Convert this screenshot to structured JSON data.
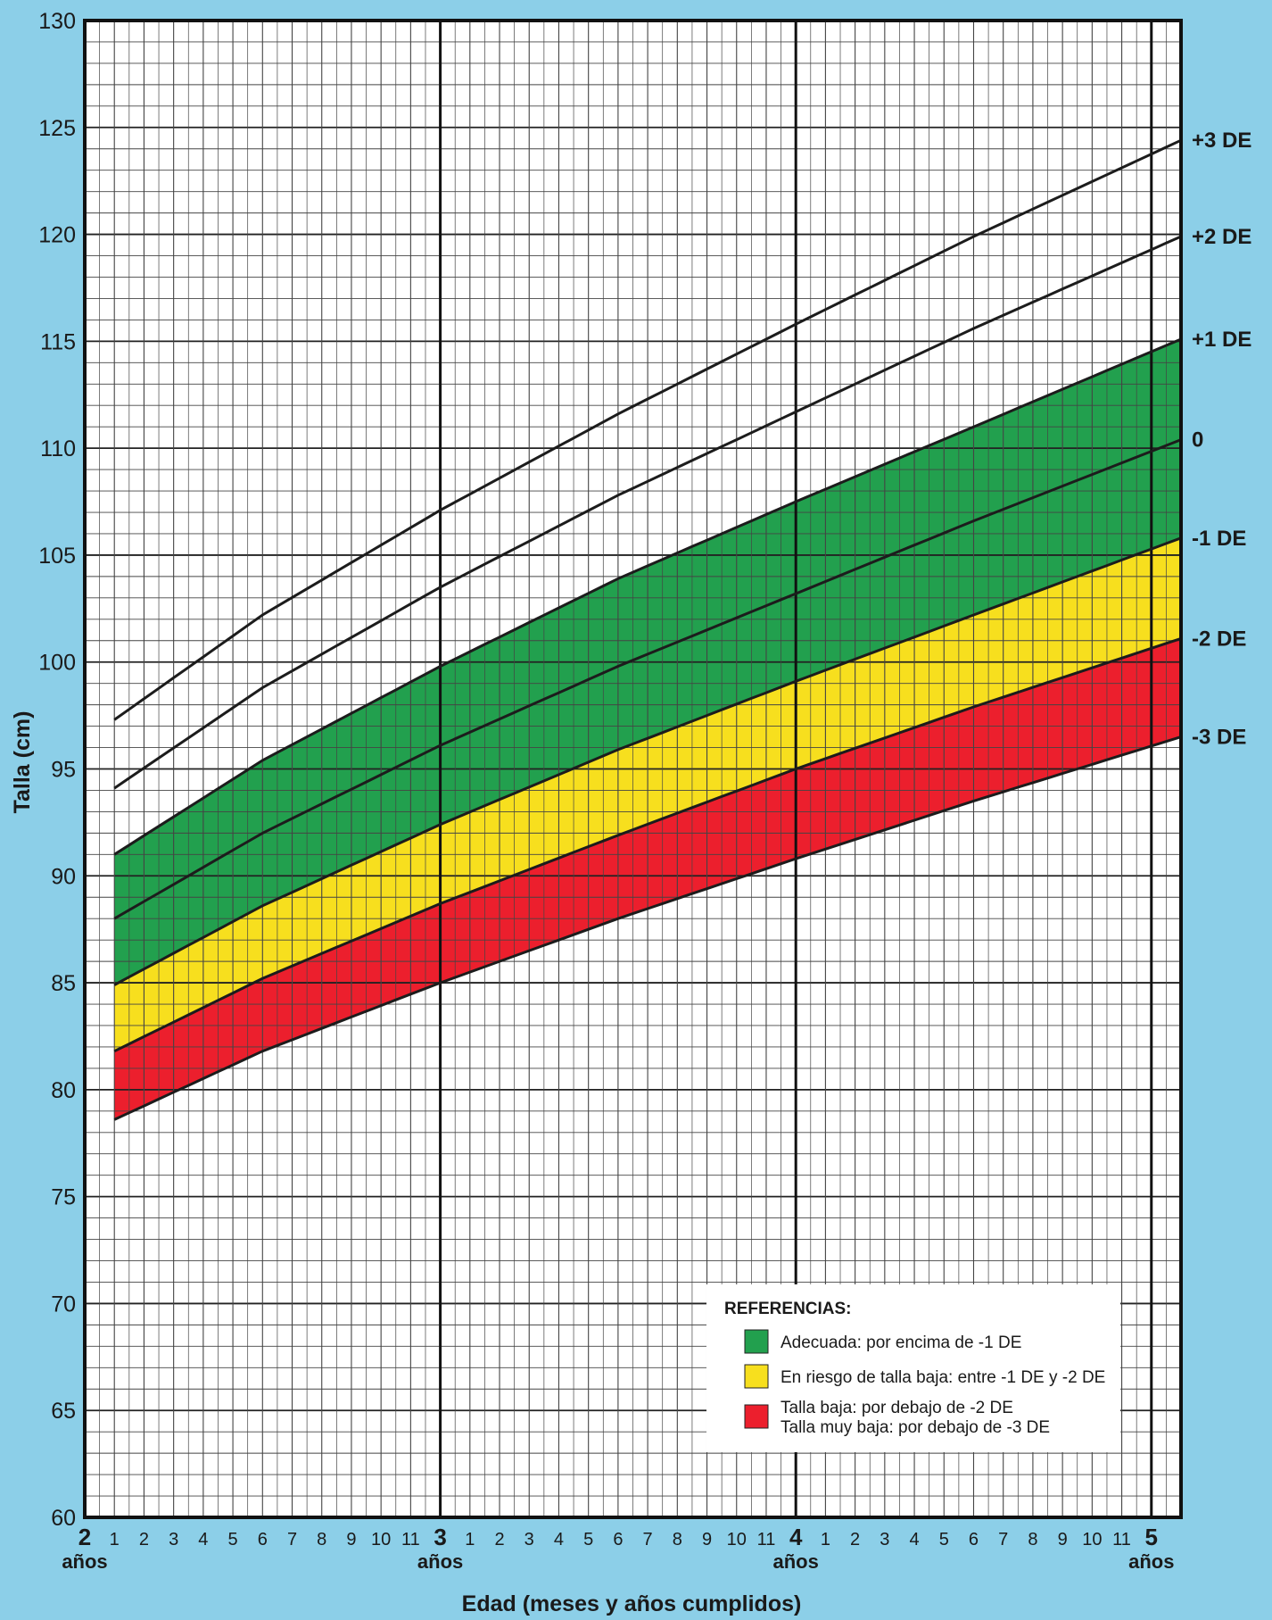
{
  "chart_data": {
    "type": "line",
    "xlabel": "Edad (meses y años cumplidos)",
    "ylabel": "Talla (cm)",
    "xlim": [
      24,
      61
    ],
    "ylim": [
      60,
      130
    ],
    "y_ticks": [
      60,
      65,
      70,
      75,
      80,
      85,
      90,
      95,
      100,
      105,
      110,
      115,
      120,
      125,
      130
    ],
    "x_tick_labels": [
      {
        "x": 24,
        "label": "2",
        "sub": "años",
        "major": true
      },
      {
        "x": 25,
        "label": "1"
      },
      {
        "x": 26,
        "label": "2"
      },
      {
        "x": 27,
        "label": "3"
      },
      {
        "x": 28,
        "label": "4"
      },
      {
        "x": 29,
        "label": "5"
      },
      {
        "x": 30,
        "label": "6"
      },
      {
        "x": 31,
        "label": "7"
      },
      {
        "x": 32,
        "label": "8"
      },
      {
        "x": 33,
        "label": "9"
      },
      {
        "x": 34,
        "label": "10"
      },
      {
        "x": 35,
        "label": "11"
      },
      {
        "x": 36,
        "label": "3",
        "sub": "años",
        "major": true
      },
      {
        "x": 37,
        "label": "1"
      },
      {
        "x": 38,
        "label": "2"
      },
      {
        "x": 39,
        "label": "3"
      },
      {
        "x": 40,
        "label": "4"
      },
      {
        "x": 41,
        "label": "5"
      },
      {
        "x": 42,
        "label": "6"
      },
      {
        "x": 43,
        "label": "7"
      },
      {
        "x": 44,
        "label": "8"
      },
      {
        "x": 45,
        "label": "9"
      },
      {
        "x": 46,
        "label": "10"
      },
      {
        "x": 47,
        "label": "11"
      },
      {
        "x": 48,
        "label": "4",
        "sub": "años",
        "major": true
      },
      {
        "x": 49,
        "label": "1"
      },
      {
        "x": 50,
        "label": "2"
      },
      {
        "x": 51,
        "label": "3"
      },
      {
        "x": 52,
        "label": "4"
      },
      {
        "x": 53,
        "label": "5"
      },
      {
        "x": 54,
        "label": "6"
      },
      {
        "x": 55,
        "label": "7"
      },
      {
        "x": 56,
        "label": "8"
      },
      {
        "x": 57,
        "label": "9"
      },
      {
        "x": 58,
        "label": "10"
      },
      {
        "x": 59,
        "label": "11"
      },
      {
        "x": 60,
        "label": "5",
        "sub": "años",
        "major": true
      }
    ],
    "series": [
      {
        "name": "+3 DE",
        "label": "+3 DE",
        "x": [
          25,
          30,
          36,
          42,
          48,
          54,
          61
        ],
        "values": [
          97.3,
          102.2,
          107.1,
          111.6,
          115.8,
          119.9,
          124.4
        ]
      },
      {
        "name": "+2 DE",
        "label": "+2 DE",
        "x": [
          25,
          30,
          36,
          42,
          48,
          54,
          61
        ],
        "values": [
          94.1,
          98.8,
          103.5,
          107.8,
          111.7,
          115.6,
          119.9
        ]
      },
      {
        "name": "+1 DE",
        "label": "+1 DE",
        "x": [
          25,
          30,
          36,
          42,
          48,
          54,
          61
        ],
        "values": [
          91.0,
          95.4,
          99.8,
          103.9,
          107.5,
          111.0,
          115.1
        ]
      },
      {
        "name": "0",
        "label": "0",
        "x": [
          25,
          30,
          36,
          42,
          48,
          54,
          61
        ],
        "values": [
          88.0,
          92.0,
          96.1,
          99.8,
          103.2,
          106.6,
          110.4
        ]
      },
      {
        "name": "-1 DE",
        "label": "-1 DE",
        "x": [
          25,
          30,
          36,
          42,
          48,
          54,
          61
        ],
        "values": [
          84.9,
          88.6,
          92.4,
          95.9,
          99.1,
          102.2,
          105.8
        ]
      },
      {
        "name": "-2 DE",
        "label": "-2 DE",
        "x": [
          25,
          30,
          36,
          42,
          48,
          54,
          61
        ],
        "values": [
          81.8,
          85.2,
          88.7,
          91.9,
          95.0,
          97.9,
          101.1
        ]
      },
      {
        "name": "-3 DE",
        "label": "-3 DE",
        "x": [
          25,
          30,
          36,
          42,
          48,
          54,
          61
        ],
        "values": [
          78.6,
          81.8,
          85.0,
          88.0,
          90.8,
          93.5,
          96.5
        ]
      }
    ],
    "bands": [
      {
        "upper": "+1 DE",
        "lower": "-1 DE",
        "color": "#22a04e"
      },
      {
        "upper": "-1 DE",
        "lower": "-2 DE",
        "color": "#f7df1e"
      },
      {
        "upper": "-2 DE",
        "lower": "-3 DE",
        "color": "#ec1f2d"
      }
    ],
    "grid": true,
    "legend": {
      "position": "bottom-right",
      "title": "REFERENCIAS:",
      "items": [
        {
          "color": "#22a04e",
          "lines": [
            "Adecuada: por encima de -1 DE"
          ]
        },
        {
          "color": "#f7df1e",
          "lines": [
            "En riesgo de talla baja: entre -1 DE y -2 DE"
          ]
        },
        {
          "color": "#ec1f2d",
          "lines": [
            "Talla baja: por debajo de -2 DE",
            "Talla muy baja: por debajo de -3 DE"
          ]
        }
      ]
    }
  }
}
